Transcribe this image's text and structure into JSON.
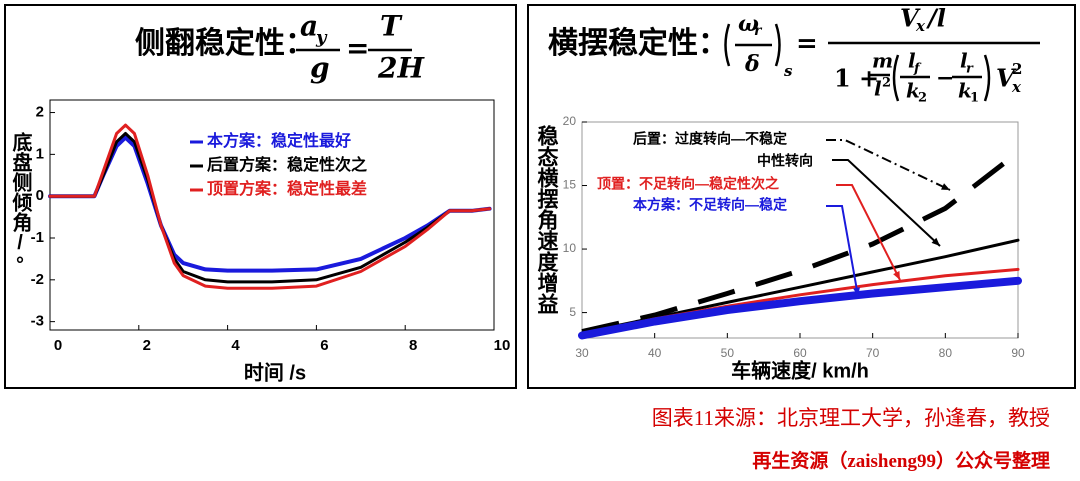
{
  "chart_data": [
    {
      "type": "line",
      "title": "侧翻稳定性：",
      "formula": [
        "a",
        "y",
        "g",
        "=",
        "T",
        "2H"
      ],
      "x_label": "时间 /s",
      "y_label": "底盘侧倾角/°",
      "xlim": [
        0,
        10
      ],
      "xticks": [
        0,
        2,
        4,
        6,
        8,
        10
      ],
      "ylim": [
        -3.2,
        2.3
      ],
      "yticks": [
        -3,
        -2,
        -1,
        0,
        1,
        2
      ],
      "x": [
        0,
        0.5,
        1,
        1.2,
        1.5,
        1.7,
        1.9,
        2.2,
        2.5,
        2.8,
        3,
        3.5,
        4,
        5,
        6,
        7,
        8,
        8.5,
        9,
        9.5,
        9.9
      ],
      "series": [
        {
          "name": "本方案：稳定性最好",
          "color": "#1a1adc",
          "values": [
            0,
            0,
            0,
            0.5,
            1.2,
            1.4,
            1.2,
            0.3,
            -0.7,
            -1.4,
            -1.6,
            -1.75,
            -1.78,
            -1.78,
            -1.75,
            -1.5,
            -1.0,
            -0.7,
            -0.35,
            -0.35,
            -0.3
          ]
        },
        {
          "name": "后置方案：稳定性次之",
          "color": "#000000",
          "values": [
            0,
            0,
            0,
            0.5,
            1.3,
            1.5,
            1.3,
            0.4,
            -0.7,
            -1.5,
            -1.8,
            -2.0,
            -2.05,
            -2.05,
            -2.0,
            -1.7,
            -1.1,
            -0.75,
            -0.35,
            -0.35,
            -0.3
          ]
        },
        {
          "name": "顶置方案：稳定性最差",
          "color": "#e02020",
          "values": [
            0,
            0,
            0,
            0.6,
            1.5,
            1.7,
            1.5,
            0.5,
            -0.7,
            -1.6,
            -1.9,
            -2.15,
            -2.2,
            -2.2,
            -2.15,
            -1.8,
            -1.2,
            -0.8,
            -0.35,
            -0.35,
            -0.3
          ]
        }
      ]
    },
    {
      "type": "line",
      "title": "横摆稳定性：",
      "formula": [
        "ω",
        "r",
        "δ",
        "s",
        "=",
        "V",
        "x",
        "/l",
        "1 +",
        "m",
        "l",
        "2",
        "l",
        "f",
        "k",
        "2",
        "−",
        "l",
        "r",
        "k",
        "1",
        "V",
        "x",
        "2"
      ],
      "x_label": "车辆速度/ km/h",
      "y_label": "稳态横摆角速度增益",
      "xlim": [
        30,
        90
      ],
      "xticks": [
        30,
        40,
        50,
        60,
        70,
        80,
        90
      ],
      "ylim": [
        3,
        20
      ],
      "yticks": [
        5,
        10,
        15,
        20
      ],
      "x": [
        30,
        40,
        50,
        60,
        70,
        80,
        90
      ],
      "series": [
        {
          "name": "后置：过度转向—不稳定",
          "color": "#000000",
          "line_style": "dashed",
          "values": [
            3.5,
            4.8,
            6.5,
            8.3,
            10.4,
            13.2,
            17.6
          ]
        },
        {
          "name": "中性转向",
          "color": "#000000",
          "values": [
            3.4,
            4.6,
            5.8,
            7.0,
            8.2,
            9.4,
            10.7
          ]
        },
        {
          "name": "顶置：不足转向—稳定性次之",
          "color": "#e02020",
          "values": [
            3.3,
            4.5,
            5.5,
            6.4,
            7.2,
            7.9,
            8.4
          ]
        },
        {
          "name": "本方案：不足转向—稳定",
          "color": "#1a1adc",
          "values": [
            3.2,
            4.3,
            5.2,
            5.9,
            6.5,
            7.0,
            7.5
          ]
        }
      ]
    }
  ],
  "footer": {
    "source": "图表11来源：北京理工大学，孙逢春，教授",
    "credit": "再生资源（zaisheng99）公众号整理"
  }
}
